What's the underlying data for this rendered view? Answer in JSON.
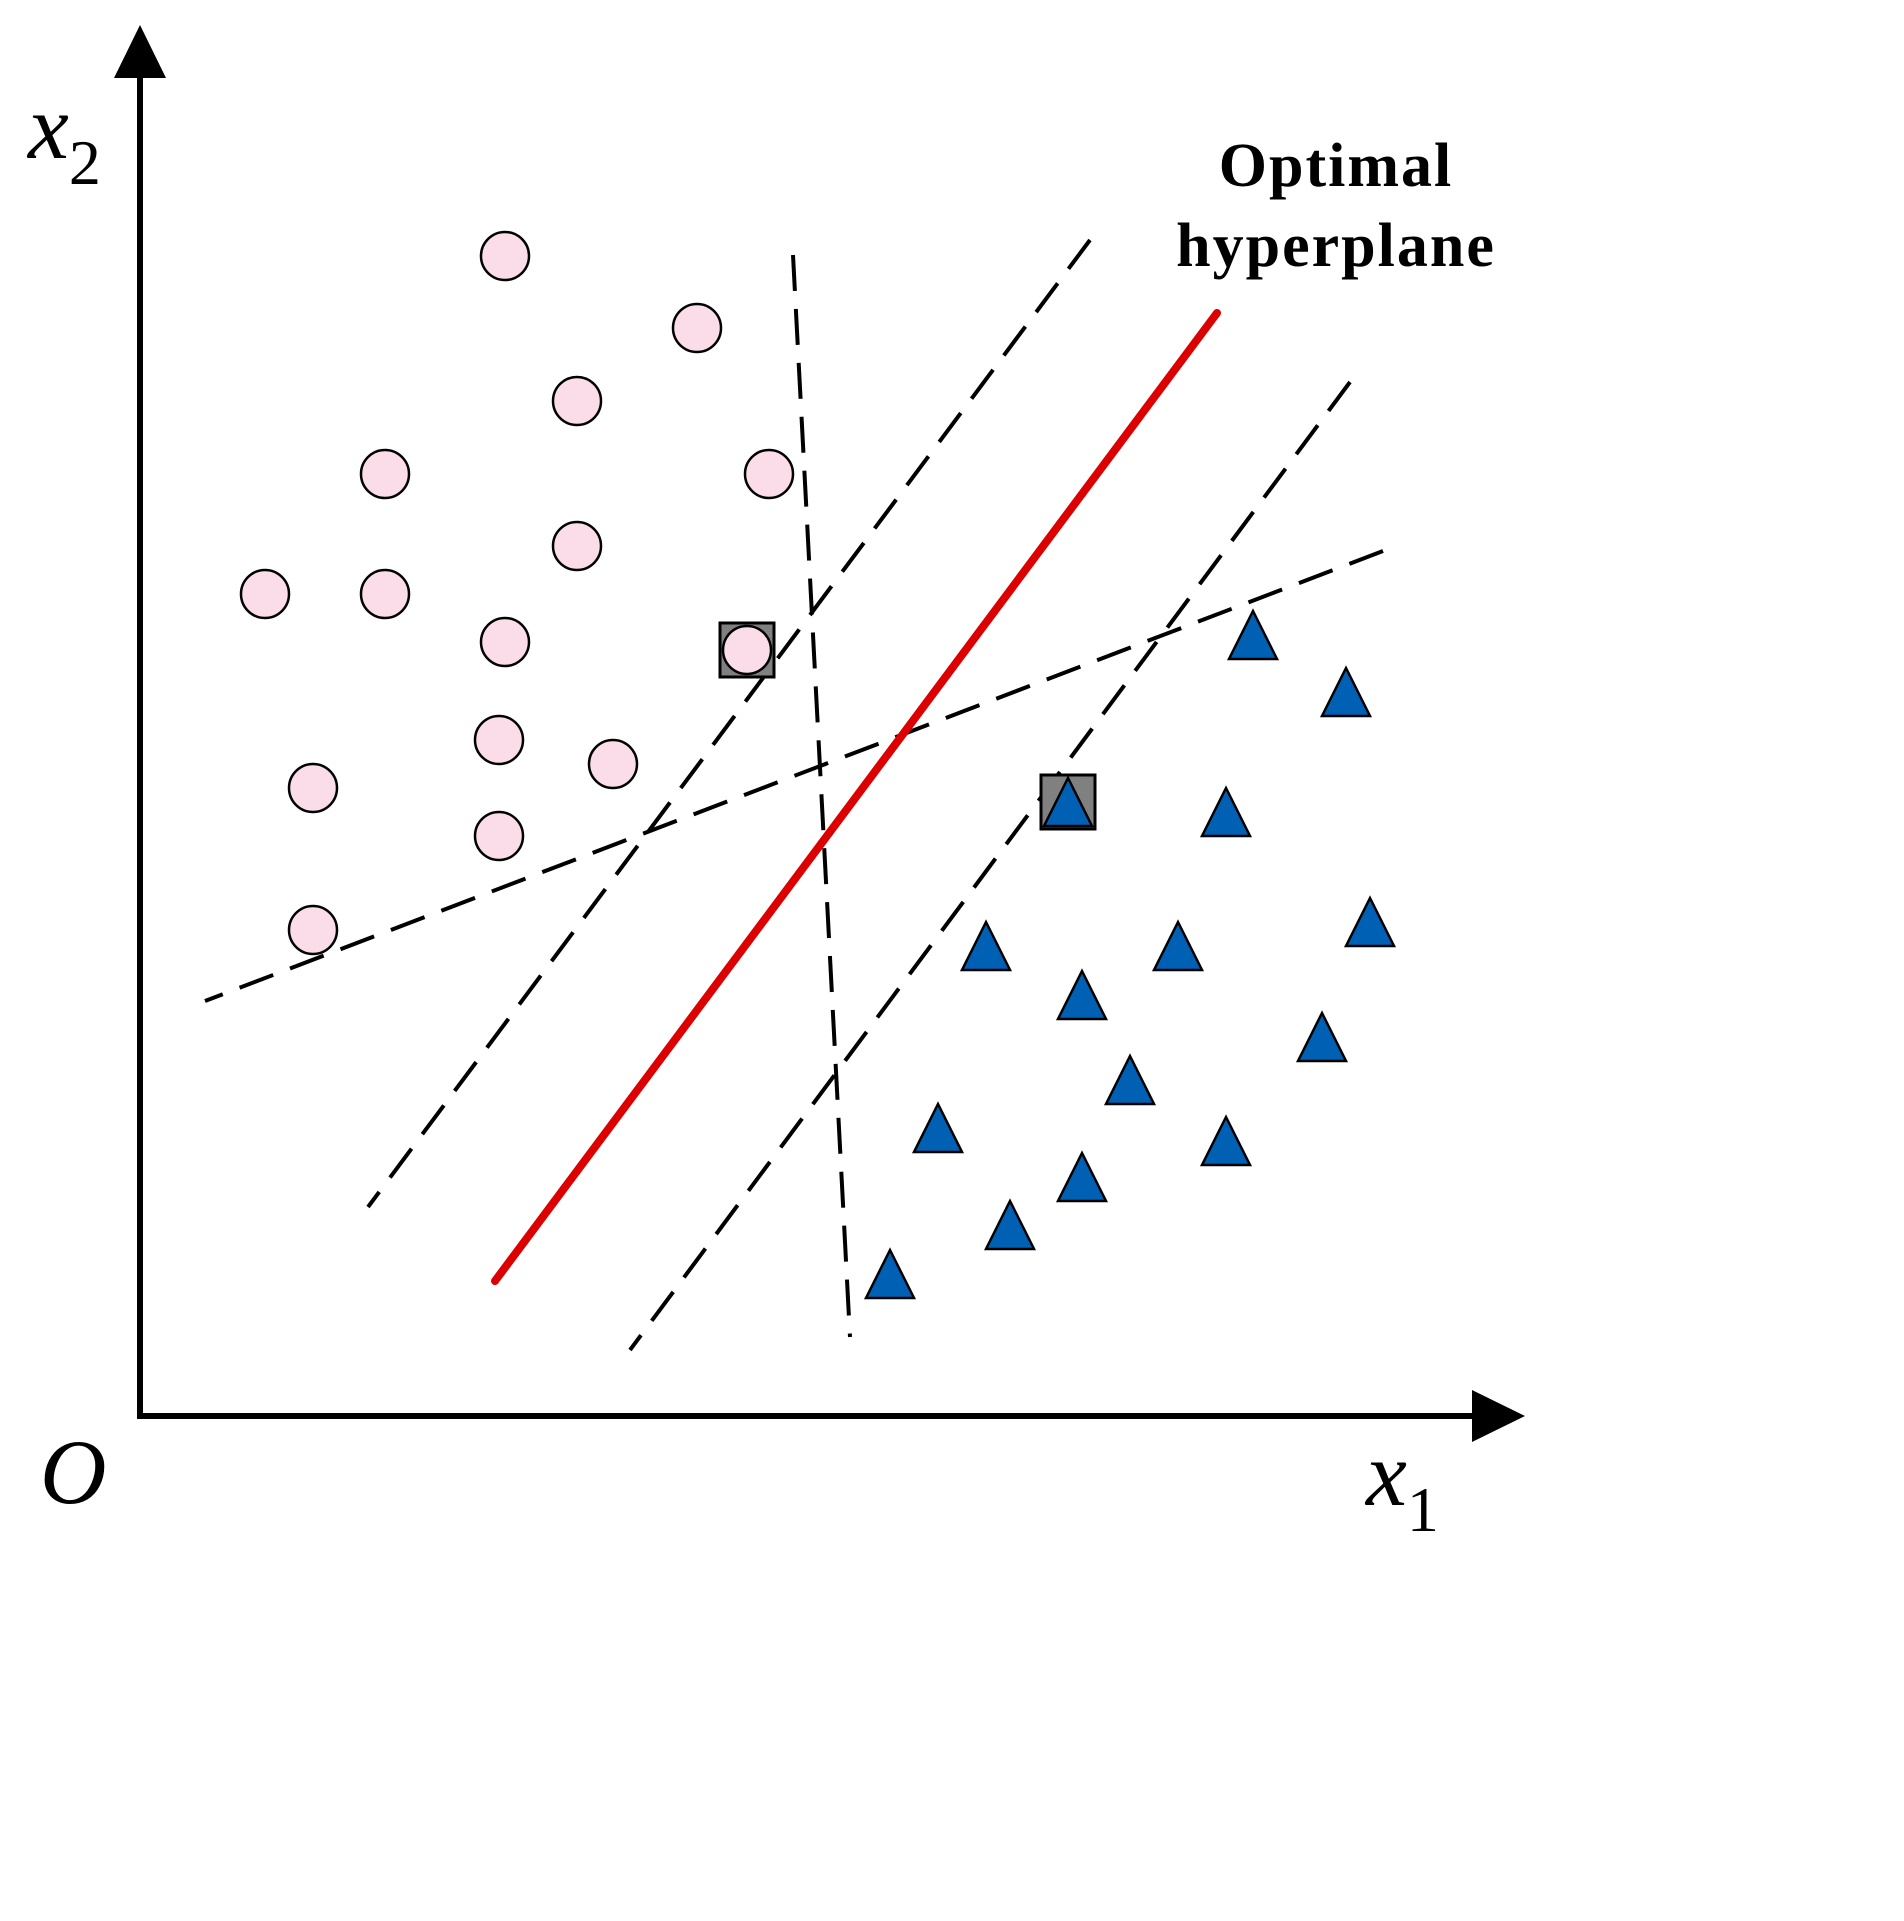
{
  "axes": {
    "origin_label": "O",
    "x_axis": {
      "base": "x",
      "subscript": "1"
    },
    "y_axis": {
      "base": "x",
      "subscript": "2"
    }
  },
  "annotation": {
    "line1": "Optimal",
    "line2": "hyperplane"
  },
  "legend_colors": {
    "class_a_fill": "#fadde8",
    "class_b_fill": "#0060b4",
    "optimal_line": "#dd0000",
    "support_vector_box": "#808080",
    "candidate_lines": "#000000"
  },
  "class_a": [
    [
      505,
      256
    ],
    [
      697,
      328
    ],
    [
      577,
      401
    ],
    [
      385,
      474
    ],
    [
      769,
      474
    ],
    [
      577,
      546
    ],
    [
      265,
      594
    ],
    [
      385,
      594
    ],
    [
      505,
      642
    ],
    [
      747,
      650
    ],
    [
      499,
      740
    ],
    [
      613,
      764
    ],
    [
      313,
      788
    ],
    [
      499,
      836
    ],
    [
      313,
      930
    ]
  ],
  "class_b": [
    [
      1253,
      635
    ],
    [
      1346,
      692
    ],
    [
      1068,
      802
    ],
    [
      1226,
      812
    ],
    [
      1370,
      922
    ],
    [
      986,
      946
    ],
    [
      1178,
      946
    ],
    [
      1082,
      995
    ],
    [
      1322,
      1037
    ],
    [
      1130,
      1080
    ],
    [
      938,
      1128
    ],
    [
      1226,
      1141
    ],
    [
      1082,
      1177
    ],
    [
      1010,
      1225
    ],
    [
      890,
      1274
    ]
  ],
  "support_vectors": [
    [
      747,
      650
    ],
    [
      1068,
      802
    ]
  ],
  "candidate_lines": [
    [
      [
        793,
        255
      ],
      [
        850,
        1337
      ]
    ],
    [
      [
        1090,
        240
      ],
      [
        368,
        1207
      ]
    ],
    [
      [
        1350,
        382
      ],
      [
        630,
        1350
      ]
    ],
    [
      [
        1383,
        551
      ],
      [
        205,
        1001
      ]
    ]
  ],
  "optimal_line": [
    [
      1217,
      313
    ],
    [
      495,
      1281
    ]
  ]
}
